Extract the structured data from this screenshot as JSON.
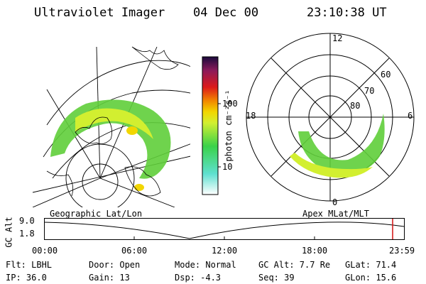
{
  "header": {
    "title": "Ultraviolet Imager",
    "date": "04 Dec 00",
    "time": "23:10:38 UT"
  },
  "colorbar": {
    "unit_label": "photon cm⁻²s⁻¹",
    "ticks": [
      "100",
      "10"
    ]
  },
  "polar_plot": {
    "mlt_labels": [
      "12",
      "18",
      "6",
      "0"
    ],
    "mlat_labels": [
      "60",
      "70",
      "80"
    ]
  },
  "panels": {
    "left_caption": "Geographic Lat/Lon",
    "right_caption": "Apex MLat/MLT"
  },
  "altitude_plot": {
    "axis_label": "GC Alt",
    "y_ticks": [
      "9.0",
      "1.8"
    ],
    "time_ticks": [
      "00:00",
      "06:00",
      "12:00",
      "18:00",
      "23:59"
    ]
  },
  "status": {
    "filter": "Flt: LBHL",
    "ip": "IP: 36.0",
    "door": "Door: Open",
    "gain": "Gain: 13",
    "mode": "Mode: Normal",
    "dsp": "Dsp:   -4.3",
    "gc_alt": "GC Alt: 7.7 Re",
    "seq": "Seq: 39",
    "glat": "GLat: 71.4",
    "glon": "GLon:  15.6"
  },
  "colors": {
    "colorbar_stops": [
      "#ffffff",
      "#5fe0d0",
      "#3ad24a",
      "#d2ef30",
      "#f2d600",
      "#f28800",
      "#dc1a1a",
      "#8c1a5a",
      "#1a0a3c"
    ],
    "auroral_oval": "#5fce3a",
    "marker": "#d21010"
  }
}
